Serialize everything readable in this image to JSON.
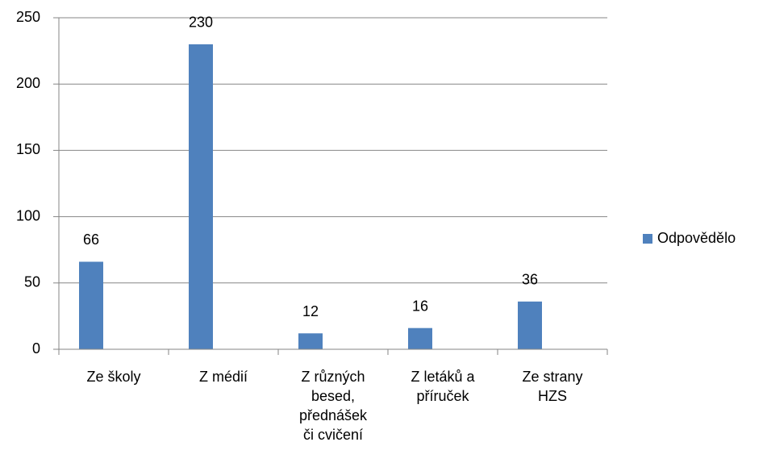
{
  "chart_data": {
    "type": "bar",
    "categories": [
      "Ze školy",
      "Z médií",
      "Z různých besed, přednášek či cvičení",
      "Z letáků a příruček",
      "Ze strany HZS"
    ],
    "series": [
      {
        "name": "Odpovědělo",
        "color": "#4f81bd",
        "values": [
          66,
          230,
          12,
          16,
          36
        ]
      }
    ],
    "ylim": [
      0,
      250
    ],
    "yticks": [
      0,
      50,
      100,
      150,
      200,
      250
    ],
    "grid": true,
    "legend": "right"
  }
}
